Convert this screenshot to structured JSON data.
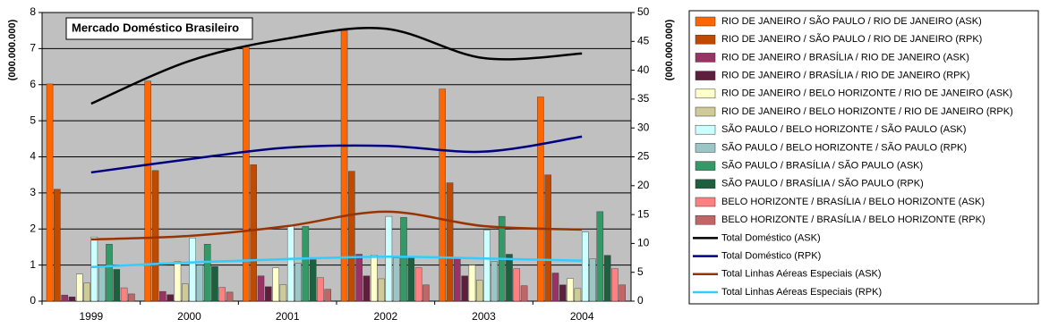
{
  "chart_data": {
    "type": "bar",
    "title": "Mercado Doméstico Brasileiro",
    "y_label": "(000.000.000)",
    "y2_label": "(000.000.000)",
    "categories": [
      "1999",
      "2000",
      "2001",
      "2002",
      "2003",
      "2004"
    ],
    "ylim": [
      0,
      8
    ],
    "yticks": [
      0,
      1,
      2,
      3,
      4,
      5,
      6,
      7,
      8
    ],
    "y2lim": [
      0,
      50
    ],
    "y2ticks": [
      0,
      5,
      10,
      15,
      20,
      25,
      30,
      35,
      40,
      45,
      50
    ],
    "grid": true,
    "legend": "right",
    "series": [
      {
        "name": "RIO DE JANEIRO / SÃO PAULO / RIO DE JANEIRO (ASK)",
        "color": "#ff6600",
        "values": [
          6.02,
          6.1,
          7.05,
          7.5,
          5.88,
          5.66
        ]
      },
      {
        "name": "RIO DE JANEIRO / SÃO PAULO / RIO DE JANEIRO (RPK)",
        "color": "#c04a00",
        "values": [
          3.1,
          3.62,
          3.78,
          3.6,
          3.28,
          3.5
        ]
      },
      {
        "name": "RIO DE JANEIRO / BRASÍLIA / RIO DE JANEIRO (ASK)",
        "color": "#993366",
        "values": [
          0.17,
          0.27,
          0.7,
          1.3,
          1.2,
          0.78
        ]
      },
      {
        "name": "RIO DE JANEIRO / BRASÍLIA / RIO DE JANEIRO (RPK)",
        "color": "#5e1f3e",
        "values": [
          0.12,
          0.18,
          0.4,
          0.7,
          0.7,
          0.45
        ]
      },
      {
        "name": "RIO DE JANEIRO / BELO HORIZONTE / RIO DE JANEIRO (ASK)",
        "color": "#ffffcc",
        "values": [
          0.75,
          1.1,
          0.92,
          1.28,
          1.0,
          0.63
        ]
      },
      {
        "name": "RIO DE JANEIRO / BELO HORIZONTE / RIO DE JANEIRO (RPK)",
        "color": "#cfcb98",
        "values": [
          0.5,
          0.48,
          0.46,
          0.62,
          0.58,
          0.35
        ]
      },
      {
        "name": "SÃO PAULO / BELO HORIZONTE / SÃO PAULO (ASK)",
        "color": "#ccffff",
        "values": [
          1.78,
          1.75,
          2.1,
          2.35,
          1.97,
          1.92
        ]
      },
      {
        "name": "SÃO PAULO / BELO HORIZONTE / SÃO PAULO (RPK)",
        "color": "#9cc6c6",
        "values": [
          1.0,
          1.0,
          1.05,
          1.2,
          1.1,
          1.17
        ]
      },
      {
        "name": "SÃO PAULO / BRASÍLIA / SÃO PAULO (ASK)",
        "color": "#339966",
        "values": [
          1.58,
          1.58,
          2.07,
          2.32,
          2.35,
          2.48
        ]
      },
      {
        "name": "SÃO PAULO / BRASÍLIA / SÃO PAULO (RPK)",
        "color": "#1c6040",
        "values": [
          0.88,
          0.96,
          1.15,
          1.2,
          1.3,
          1.27
        ]
      },
      {
        "name": "BELO HORIZONTE / BRASÍLIA / BELO HORIZONTE (ASK)",
        "color": "#ff8080",
        "values": [
          0.37,
          0.38,
          0.65,
          0.93,
          0.9,
          0.9
        ]
      },
      {
        "name": "BELO HORIZONTE / BRASÍLIA / BELO HORIZONTE (RPK)",
        "color": "#c06666",
        "values": [
          0.2,
          0.25,
          0.33,
          0.45,
          0.43,
          0.45
        ]
      },
      {
        "name": "Total Doméstico (ASK)",
        "color": "#000000",
        "type": "line",
        "axis": "y2",
        "values": [
          34.2,
          41.6,
          45.5,
          47.2,
          42.1,
          42.9
        ]
      },
      {
        "name": "Total Doméstico (RPK)",
        "color": "#000080",
        "type": "line",
        "axis": "y2",
        "values": [
          22.3,
          24.6,
          26.6,
          26.9,
          25.9,
          28.5
        ]
      },
      {
        "name": "Total Linhas Aéreas Especiais (ASK)",
        "color": "#993300",
        "type": "line",
        "axis": "y2",
        "values": [
          10.7,
          11.3,
          13.0,
          15.5,
          13.0,
          12.4
        ]
      },
      {
        "name": "Total Linhas Aéreas Especiais (RPK)",
        "color": "#33ccff",
        "type": "line",
        "axis": "y2",
        "values": [
          5.9,
          6.7,
          7.3,
          7.7,
          7.4,
          7.0
        ]
      }
    ]
  }
}
